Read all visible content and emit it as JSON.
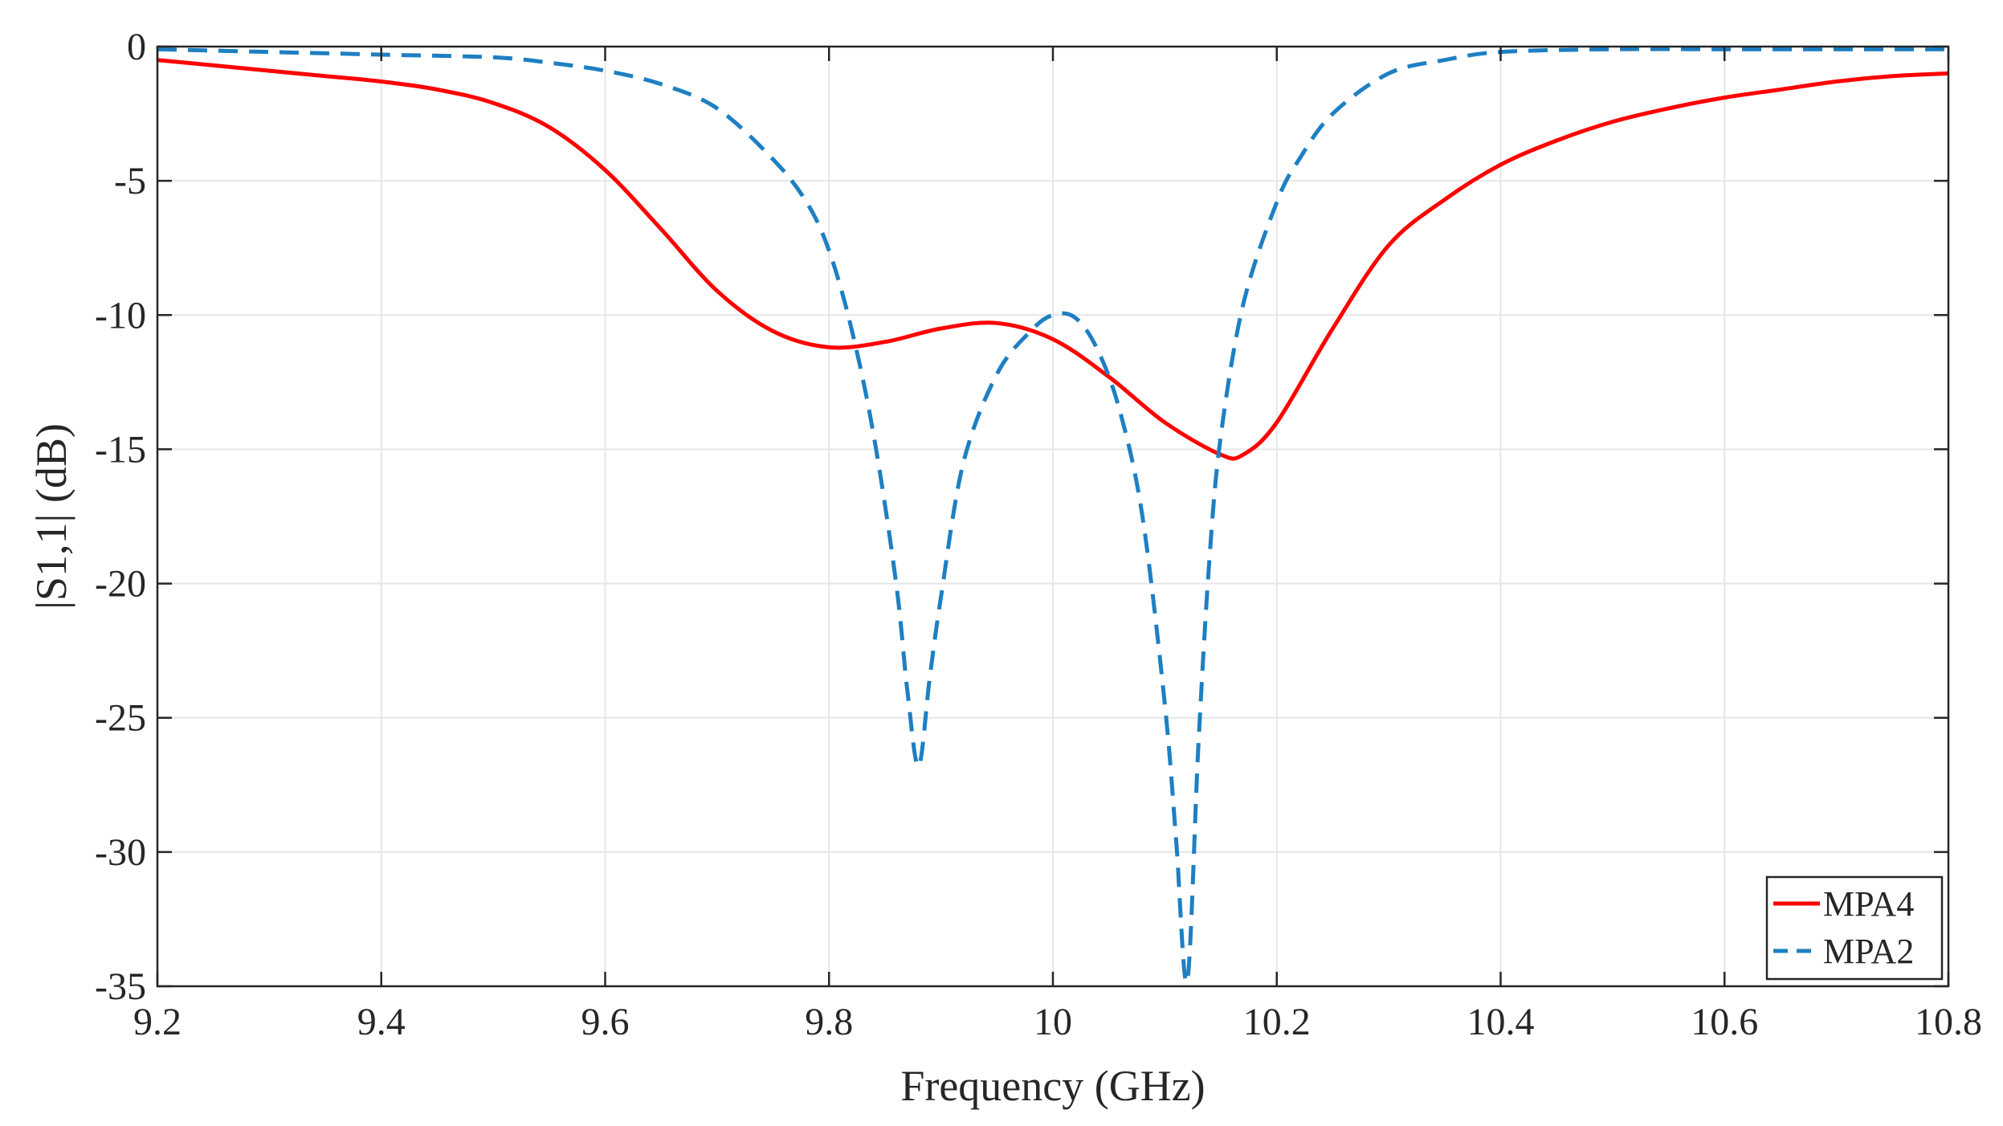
{
  "chart_data": {
    "type": "line",
    "title": "",
    "xlabel": "Frequency (GHz)",
    "ylabel": "|S1,1| (dB)",
    "xlim": [
      9.2,
      10.8
    ],
    "ylim": [
      -35,
      0
    ],
    "xticks": [
      9.2,
      9.4,
      9.6,
      9.8,
      10,
      10.2,
      10.4,
      10.6,
      10.8
    ],
    "xtick_labels": [
      "9.2",
      "9.4",
      "9.6",
      "9.8",
      "10",
      "10.2",
      "10.4",
      "10.6",
      "10.8"
    ],
    "yticks": [
      0,
      -5,
      -10,
      -15,
      -20,
      -25,
      -30,
      -35
    ],
    "ytick_labels": [
      "0",
      "-5",
      "-10",
      "-15",
      "-20",
      "-25",
      "-30",
      "-35"
    ],
    "grid": true,
    "legend_position": "bottom-right",
    "series": [
      {
        "name": "MPA4",
        "color": "#ff0000",
        "style": "solid",
        "x": [
          9.2,
          9.25,
          9.3,
          9.35,
          9.4,
          9.45,
          9.5,
          9.55,
          9.6,
          9.65,
          9.7,
          9.75,
          9.8,
          9.85,
          9.9,
          9.95,
          10.0,
          10.05,
          10.1,
          10.15,
          10.17,
          10.2,
          10.25,
          10.3,
          10.35,
          10.4,
          10.45,
          10.5,
          10.55,
          10.6,
          10.65,
          10.7,
          10.75,
          10.8
        ],
        "y": [
          -0.5,
          -0.7,
          -0.9,
          -1.1,
          -1.3,
          -1.6,
          -2.1,
          -3.0,
          -4.6,
          -6.8,
          -9.1,
          -10.6,
          -11.2,
          -11.0,
          -10.5,
          -10.3,
          -10.9,
          -12.3,
          -14.0,
          -15.2,
          -15.2,
          -14.0,
          -10.5,
          -7.4,
          -5.7,
          -4.4,
          -3.5,
          -2.8,
          -2.3,
          -1.9,
          -1.6,
          -1.3,
          -1.1,
          -1.0
        ]
      },
      {
        "name": "MPA2",
        "color": "#1e7fc2",
        "style": "dashed",
        "x": [
          9.2,
          9.3,
          9.4,
          9.5,
          9.55,
          9.6,
          9.65,
          9.7,
          9.75,
          9.78,
          9.8,
          9.82,
          9.84,
          9.86,
          9.87,
          9.88,
          9.89,
          9.9,
          9.92,
          9.95,
          9.98,
          10.0,
          10.02,
          10.04,
          10.06,
          10.08,
          10.1,
          10.11,
          10.12,
          10.13,
          10.14,
          10.15,
          10.17,
          10.2,
          10.22,
          10.25,
          10.3,
          10.35,
          10.4,
          10.5,
          10.6,
          10.7,
          10.8
        ],
        "y": [
          -0.1,
          -0.2,
          -0.3,
          -0.4,
          -0.6,
          -0.9,
          -1.4,
          -2.3,
          -4.2,
          -5.8,
          -7.6,
          -10.5,
          -14.5,
          -20.0,
          -24.0,
          -26.8,
          -23.5,
          -20.5,
          -15.5,
          -12.2,
          -10.6,
          -10.0,
          -10.1,
          -11.3,
          -13.6,
          -17.5,
          -24.5,
          -29.5,
          -34.8,
          -26.0,
          -19.0,
          -14.5,
          -9.6,
          -5.8,
          -4.2,
          -2.5,
          -1.0,
          -0.5,
          -0.2,
          -0.1,
          -0.1,
          -0.1,
          -0.1
        ]
      }
    ]
  }
}
